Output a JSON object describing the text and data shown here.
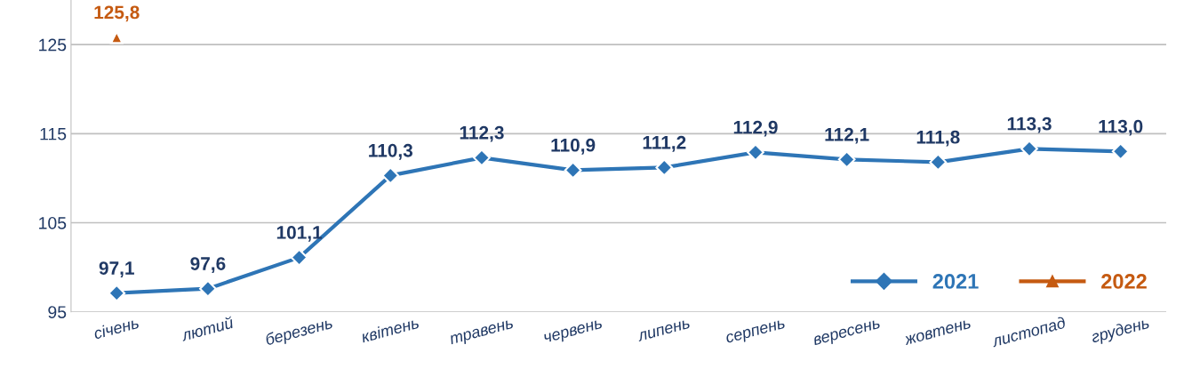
{
  "chart_data": {
    "type": "line",
    "categories": [
      "січень",
      "лютий",
      "березень",
      "квітень",
      "травень",
      "червень",
      "липень",
      "серпень",
      "вересень",
      "жовтень",
      "листопад",
      "грудень"
    ],
    "series": [
      {
        "name": "2021",
        "color": "#2e75b6",
        "marker": "diamond",
        "values": [
          97.1,
          97.6,
          101.1,
          110.3,
          112.3,
          110.9,
          111.2,
          112.9,
          112.1,
          111.8,
          113.3,
          113.0
        ],
        "value_labels": [
          "97,1",
          "97,6",
          "101,1",
          "110,3",
          "112,3",
          "110,9",
          "111,2",
          "112,9",
          "112,1",
          "111,8",
          "113,3",
          "113,0"
        ]
      },
      {
        "name": "2022",
        "color": "#c55a11",
        "marker": "triangle",
        "values": [
          125.8,
          null,
          null,
          null,
          null,
          null,
          null,
          null,
          null,
          null,
          null,
          null
        ],
        "value_labels": [
          "125,8",
          null,
          null,
          null,
          null,
          null,
          null,
          null,
          null,
          null,
          null,
          null
        ]
      }
    ],
    "ylim": [
      95,
      130
    ],
    "yticks": [
      95,
      105,
      115,
      125
    ],
    "grid": "y",
    "legend": "bottom right"
  }
}
